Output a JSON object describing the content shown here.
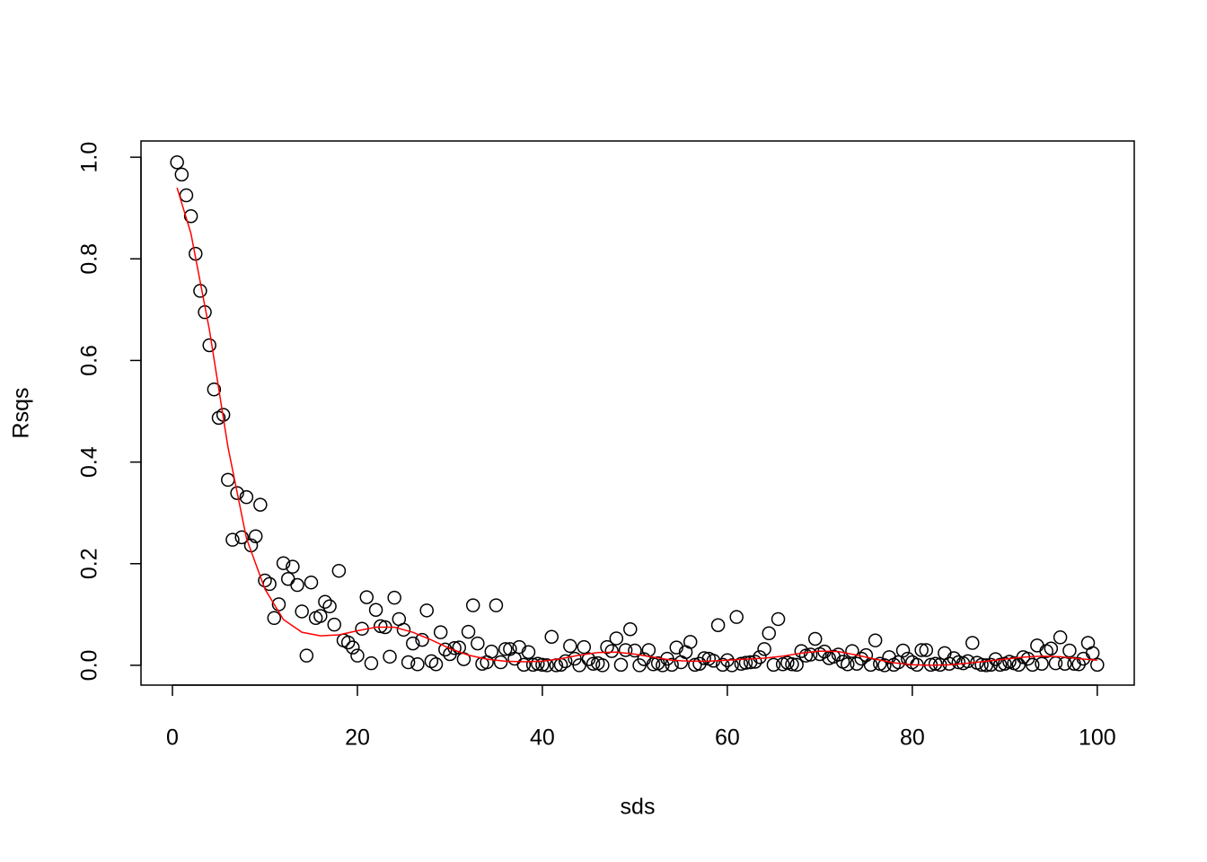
{
  "chart_data": {
    "type": "scatter",
    "xlabel": "sds",
    "ylabel": "Rsqs",
    "xlim": [
      -3.4,
      104.0
    ],
    "ylim": [
      -0.039,
      1.032
    ],
    "xticks": [
      0,
      20,
      40,
      60,
      80,
      100
    ],
    "yticks": [
      {
        "value": 0,
        "label": "0.0"
      },
      {
        "value": 0.2,
        "label": "0.2"
      },
      {
        "value": 0.4,
        "label": "0.4"
      },
      {
        "value": 0.6,
        "label": "0.6"
      },
      {
        "value": 0.8,
        "label": "0.8"
      },
      {
        "value": 1,
        "label": "1.0"
      }
    ],
    "grid": false,
    "series": [
      {
        "type": "scatter",
        "color": "#000000",
        "x": [
          0.5,
          1,
          1.5,
          2,
          2.5,
          3,
          3.5,
          4,
          4.5,
          5,
          5.5,
          6,
          6.5,
          7,
          7.5,
          8,
          8.5,
          9,
          9.5,
          10,
          10.5,
          11,
          11.5,
          12,
          12.5,
          13,
          13.5,
          14,
          14.5,
          15,
          15.5,
          16,
          16.5,
          17,
          17.5,
          18,
          18.5,
          19,
          19.5,
          20,
          20.5,
          21,
          21.5,
          22,
          22.5,
          23,
          23.5,
          24,
          24.5,
          25,
          25.5,
          26,
          26.5,
          27,
          27.5,
          28,
          28.5,
          29,
          29.5,
          30,
          30.5,
          31,
          31.5,
          32,
          32.5,
          33,
          33.5,
          34,
          34.5,
          35,
          35.5,
          36,
          36.5,
          37,
          37.5,
          38,
          38.5,
          39,
          39.5,
          40,
          40.5,
          41,
          41.5,
          42,
          42.5,
          43,
          43.5,
          44,
          44.5,
          45,
          45.5,
          46,
          46.5,
          47,
          47.5,
          48,
          48.5,
          49,
          49.5,
          50,
          50.5,
          51,
          51.5,
          52,
          52.5,
          53,
          53.5,
          54,
          54.5,
          55,
          55.5,
          56,
          56.5,
          57,
          57.5,
          58,
          58.5,
          59,
          59.5,
          60,
          60.5,
          61,
          61.5,
          62,
          62.5,
          63,
          63.5,
          64,
          64.5,
          65,
          65.5,
          66,
          66.5,
          67,
          67.5,
          68,
          68.5,
          69,
          69.5,
          70,
          70.5,
          71,
          71.5,
          72,
          72.5,
          73,
          73.5,
          74,
          74.5,
          75,
          75.5,
          76,
          76.5,
          77,
          77.5,
          78,
          78.5,
          79,
          79.5,
          80,
          80.5,
          81,
          81.5,
          82,
          82.5,
          83,
          83.5,
          84,
          84.5,
          85,
          85.5,
          86,
          86.5,
          87,
          87.5,
          88,
          88.5,
          89,
          89.5,
          90,
          90.5,
          91,
          91.5,
          92,
          92.5,
          93,
          93.5,
          94,
          94.5,
          95,
          95.5,
          96,
          96.5,
          97,
          97.5,
          98,
          98.5,
          99,
          99.5,
          100
        ],
        "values": [
          0.99,
          0.966,
          0.925,
          0.884,
          0.81,
          0.737,
          0.695,
          0.63,
          0.543,
          0.487,
          0.493,
          0.365,
          0.247,
          0.339,
          0.252,
          0.331,
          0.236,
          0.254,
          0.316,
          0.167,
          0.16,
          0.093,
          0.12,
          0.201,
          0.17,
          0.194,
          0.158,
          0.106,
          0.019,
          0.163,
          0.093,
          0.097,
          0.125,
          0.116,
          0.08,
          0.186,
          0.049,
          0.045,
          0.035,
          0.019,
          0.072,
          0.134,
          0.004,
          0.109,
          0.077,
          0.075,
          0.017,
          0.133,
          0.091,
          0.07,
          0.006,
          0.043,
          0.002,
          0.05,
          0.108,
          0.008,
          0.002,
          0.065,
          0.031,
          0.022,
          0.034,
          0.035,
          0.012,
          0.066,
          0.118,
          0.043,
          0.003,
          0.006,
          0.027,
          0.118,
          0.006,
          0.032,
          0.032,
          0.013,
          0.036,
          0.001,
          0.026,
          0.001,
          0.003,
          0.001,
          0.0,
          0.056,
          0.0,
          0.001,
          0.008,
          0.038,
          0.013,
          0.0,
          0.036,
          0.012,
          0.003,
          0.004,
          0.0,
          0.036,
          0.028,
          0.053,
          0.001,
          0.03,
          0.071,
          0.029,
          0.0,
          0.012,
          0.03,
          0.002,
          0.004,
          0.0,
          0.013,
          0.001,
          0.035,
          0.006,
          0.026,
          0.046,
          0.001,
          0.003,
          0.014,
          0.013,
          0.009,
          0.079,
          0.001,
          0.01,
          0.0,
          0.095,
          0.003,
          0.005,
          0.006,
          0.007,
          0.016,
          0.032,
          0.063,
          0.001,
          0.091,
          0.002,
          0.005,
          0.002,
          0.001,
          0.028,
          0.019,
          0.021,
          0.052,
          0.022,
          0.027,
          0.014,
          0.017,
          0.021,
          0.007,
          0.002,
          0.028,
          0.003,
          0.013,
          0.02,
          0.001,
          0.049,
          0.003,
          0.0,
          0.016,
          0.001,
          0.006,
          0.029,
          0.013,
          0.006,
          0.001,
          0.03,
          0.03,
          0.001,
          0.003,
          0.001,
          0.024,
          0.003,
          0.014,
          0.006,
          0.004,
          0.008,
          0.044,
          0.005,
          0.001,
          0.0,
          0.001,
          0.012,
          0.001,
          0.003,
          0.007,
          0.004,
          0.001,
          0.016,
          0.013,
          0.001,
          0.039,
          0.003,
          0.028,
          0.033,
          0.004,
          0.055,
          0.003,
          0.029,
          0.003,
          0.002,
          0.013,
          0.044,
          0.024,
          0.001
        ]
      },
      {
        "type": "line",
        "color": "#ff0000",
        "x": [
          0.5,
          2,
          4,
          6,
          8,
          10,
          12,
          14,
          16,
          18,
          20,
          22,
          24,
          26,
          28,
          30,
          32,
          34,
          36,
          38,
          40,
          42,
          44,
          46,
          48,
          50,
          52,
          54,
          56,
          58,
          60,
          62,
          64,
          66,
          68,
          70,
          72,
          74,
          76,
          78,
          80,
          82,
          84,
          86,
          88,
          90,
          92,
          94,
          96,
          98,
          100
        ],
        "values": [
          0.94,
          0.85,
          0.66,
          0.43,
          0.25,
          0.15,
          0.09,
          0.065,
          0.058,
          0.06,
          0.068,
          0.075,
          0.075,
          0.065,
          0.05,
          0.033,
          0.02,
          0.012,
          0.008,
          0.007,
          0.008,
          0.013,
          0.02,
          0.025,
          0.026,
          0.022,
          0.016,
          0.01,
          0.008,
          0.008,
          0.01,
          0.012,
          0.014,
          0.018,
          0.024,
          0.028,
          0.027,
          0.02,
          0.012,
          0.005,
          0.001,
          0.0,
          0.001,
          0.004,
          0.008,
          0.012,
          0.016,
          0.018,
          0.017,
          0.013,
          0.01
        ]
      }
    ]
  }
}
